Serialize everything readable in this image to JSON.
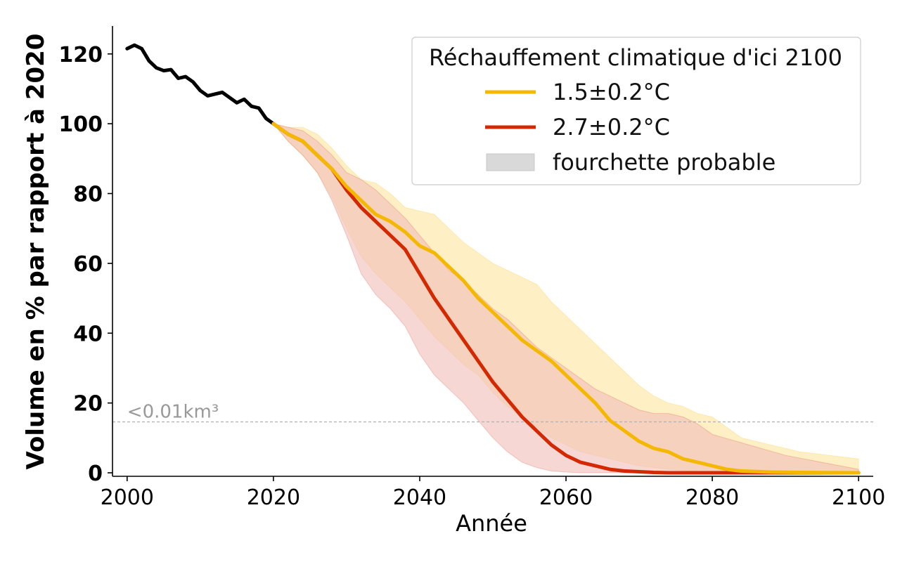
{
  "chart_data": {
    "type": "line",
    "xlabel": "Année",
    "ylabel": "Volume en % par rapport à 2020",
    "xlim": [
      1998,
      2102
    ],
    "ylim": [
      -1,
      128
    ],
    "xticks": [
      2000,
      2020,
      2040,
      2060,
      2080,
      2100
    ],
    "yticks": [
      0,
      20,
      40,
      60,
      80,
      100,
      120
    ],
    "grid": false,
    "legend": {
      "title": "Réchauffement climatique d'ici 2100",
      "placement": "top-right",
      "range_label": "fourchette probable"
    },
    "annotation": {
      "text": "<0.01km³",
      "y": 14.6
    },
    "historical": {
      "color": "#000000",
      "x": [
        2000,
        2001,
        2002,
        2003,
        2004,
        2005,
        2006,
        2007,
        2008,
        2009,
        2010,
        2011,
        2012,
        2013,
        2014,
        2015,
        2016,
        2017,
        2018,
        2019,
        2020
      ],
      "y": [
        121.5,
        122.5,
        121.5,
        118,
        116,
        115.2,
        115.5,
        113,
        113.5,
        112,
        109.5,
        108,
        108.5,
        109,
        107.5,
        106,
        107,
        105,
        104.5,
        101.5,
        100
      ]
    },
    "series": [
      {
        "name": "1.5±0.2°C",
        "color": "#f5b800",
        "fill": "#fde7a6",
        "x": [
          2020,
          2022,
          2024,
          2026,
          2028,
          2030,
          2032,
          2034,
          2036,
          2038,
          2040,
          2042,
          2044,
          2046,
          2048,
          2050,
          2052,
          2054,
          2056,
          2058,
          2060,
          2062,
          2064,
          2066,
          2068,
          2070,
          2072,
          2074,
          2076,
          2078,
          2080,
          2082,
          2084,
          2088,
          2092,
          2100
        ],
        "y": [
          100,
          97,
          95,
          91,
          87,
          82,
          78,
          74,
          72,
          69,
          65,
          63,
          59,
          55,
          50,
          46,
          42,
          38,
          35,
          32,
          28,
          24,
          20,
          15,
          12,
          9,
          7,
          6,
          4,
          3,
          2,
          1,
          0.5,
          0.2,
          0.1,
          0
        ],
        "lower": [
          100,
          95,
          91,
          86,
          79,
          70,
          62,
          57,
          53,
          49,
          44,
          39,
          35,
          31,
          28,
          23,
          19,
          16,
          13,
          10,
          8,
          6,
          5,
          4,
          3,
          2,
          1.5,
          1,
          0.6,
          0.4,
          0.2,
          0.1,
          0,
          0,
          0,
          0
        ],
        "upper": [
          100,
          99,
          99,
          97,
          93,
          88,
          84,
          83,
          80,
          76,
          75,
          74,
          70,
          66,
          63,
          60,
          58,
          56,
          54,
          49,
          45,
          41,
          37,
          33,
          29,
          25,
          22,
          20,
          19,
          17,
          16,
          13,
          10,
          8,
          6,
          4
        ]
      },
      {
        "name": "2.7±0.2°C",
        "color": "#d42900",
        "fill": "#f0bdb8",
        "x": [
          2020,
          2022,
          2024,
          2026,
          2028,
          2030,
          2032,
          2034,
          2036,
          2038,
          2040,
          2042,
          2044,
          2046,
          2048,
          2050,
          2052,
          2054,
          2056,
          2058,
          2060,
          2062,
          2064,
          2066,
          2068,
          2070,
          2072,
          2074,
          2076,
          2078,
          2080,
          2090,
          2100
        ],
        "y": [
          100,
          97,
          95,
          91,
          87,
          81,
          76,
          72,
          68,
          64,
          57,
          50,
          44,
          38,
          32,
          26,
          21,
          16,
          12,
          8,
          5,
          3,
          2,
          1,
          0.5,
          0.3,
          0.1,
          0,
          0,
          0,
          0,
          0,
          0
        ],
        "lower": [
          100,
          95,
          91,
          86,
          78,
          68,
          57,
          51,
          47,
          42,
          34,
          28,
          24,
          20,
          15,
          10,
          6,
          3,
          1.5,
          0.5,
          0.2,
          0,
          0,
          0,
          0,
          0,
          0,
          0,
          0,
          0,
          0,
          0,
          0
        ],
        "upper": [
          100,
          99,
          98,
          95,
          91,
          86,
          84,
          81,
          77,
          73,
          68,
          63,
          58,
          55,
          51,
          47,
          44,
          40,
          36,
          33,
          30,
          27,
          24,
          22,
          20,
          18,
          17,
          17,
          16,
          14,
          11,
          5,
          1
        ]
      }
    ]
  }
}
